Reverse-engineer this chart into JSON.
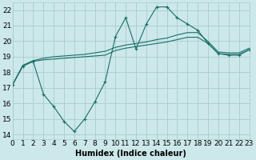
{
  "xlabel": "Humidex (Indice chaleur)",
  "background_color": "#cce8ea",
  "grid_color": "#a8cccc",
  "line_color": "#1a6e68",
  "xlim": [
    0,
    23
  ],
  "ylim": [
    13.7,
    22.5
  ],
  "yticks": [
    14,
    15,
    16,
    17,
    18,
    19,
    20,
    21,
    22
  ],
  "xticks": [
    0,
    1,
    2,
    3,
    4,
    5,
    6,
    7,
    8,
    9,
    10,
    11,
    12,
    13,
    14,
    15,
    16,
    17,
    18,
    19,
    20,
    21,
    22,
    23
  ],
  "line1_x": [
    0,
    1,
    2,
    3,
    4,
    5,
    6,
    7,
    8,
    9,
    10,
    11,
    12,
    13,
    14,
    15,
    16,
    17,
    18,
    19,
    20,
    21,
    22,
    23
  ],
  "line1_y": [
    17.2,
    18.4,
    18.7,
    18.8,
    18.85,
    18.9,
    18.95,
    19.0,
    19.05,
    19.1,
    19.4,
    19.55,
    19.65,
    19.75,
    19.85,
    19.95,
    20.1,
    20.25,
    20.25,
    19.85,
    19.2,
    19.15,
    19.15,
    19.45
  ],
  "line2_x": [
    0,
    1,
    2,
    3,
    4,
    5,
    6,
    7,
    8,
    9,
    10,
    11,
    12,
    13,
    14,
    15,
    16,
    17,
    18,
    19,
    20,
    21,
    22,
    23
  ],
  "line2_y": [
    17.2,
    18.45,
    18.75,
    18.9,
    19.0,
    19.05,
    19.1,
    19.15,
    19.25,
    19.35,
    19.6,
    19.75,
    19.85,
    19.95,
    20.1,
    20.2,
    20.4,
    20.55,
    20.55,
    19.98,
    19.3,
    19.25,
    19.25,
    19.55
  ],
  "line3_x": [
    0,
    1,
    2,
    3,
    4,
    5,
    6,
    7,
    8,
    9,
    10,
    11,
    12,
    13,
    14,
    15,
    16,
    17,
    18,
    19,
    20,
    21,
    22,
    23
  ],
  "line3_y": [
    17.2,
    18.4,
    18.7,
    16.6,
    15.8,
    14.85,
    14.2,
    15.0,
    16.1,
    17.4,
    20.3,
    21.5,
    19.5,
    21.1,
    22.2,
    22.2,
    21.5,
    21.1,
    20.7,
    19.85,
    19.2,
    19.1,
    19.1,
    19.45
  ],
  "fontsize_label": 7,
  "fontsize_tick": 6.5
}
